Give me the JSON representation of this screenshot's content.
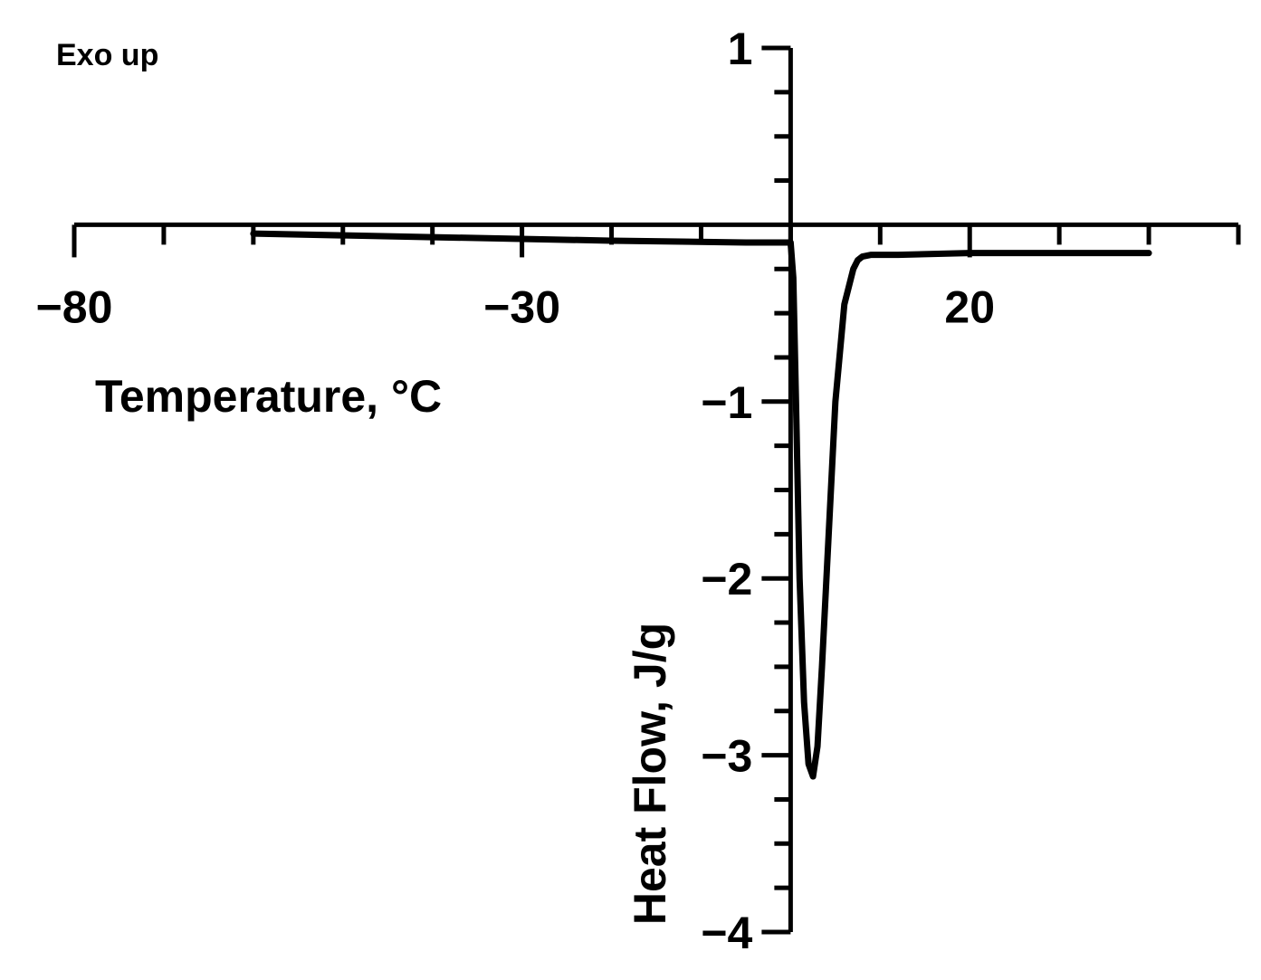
{
  "chart_data": {
    "type": "line",
    "annotation": "Exo up",
    "x_label": "Temperature, °C",
    "y_label": "Heat Flow, J/g",
    "xlim": [
      -80,
      50
    ],
    "ylim": [
      -4,
      1
    ],
    "xticks": [
      {
        "value": -80,
        "label": "−80"
      },
      {
        "value": -30,
        "label": "−30"
      },
      20
    ],
    "xminorticks": [
      -70,
      -60,
      -50,
      -40,
      -20,
      -10,
      0,
      10,
      30,
      40,
      50
    ],
    "yticks": [
      1,
      {
        "value": -1,
        "label": "−1"
      },
      {
        "value": -2,
        "label": "−2"
      },
      {
        "value": -3,
        "label": "−3"
      },
      {
        "value": -4,
        "label": "−4"
      }
    ],
    "yminorticks": [
      0.75,
      0.5,
      0.25,
      -0.25,
      -0.5,
      -0.75,
      -1.25,
      -1.5,
      -1.75,
      -2.25,
      -2.5,
      -2.75,
      -3.25,
      -3.5,
      -3.75
    ],
    "series": [
      {
        "color": "#000000",
        "x": [
          -60,
          -40,
          -20,
          -5,
          0,
          0.3,
          0.6,
          1,
          1.5,
          2,
          2.5,
          3,
          3.5,
          4,
          5,
          6,
          7,
          7.5,
          8,
          9,
          12,
          20,
          30,
          40
        ],
        "values": [
          -0.05,
          -0.07,
          -0.09,
          -0.1,
          -0.1,
          -0.3,
          -1.0,
          -2.0,
          -2.7,
          -3.05,
          -3.12,
          -2.95,
          -2.5,
          -2.0,
          -1.0,
          -0.45,
          -0.25,
          -0.2,
          -0.18,
          -0.17,
          -0.17,
          -0.16,
          -0.16,
          -0.16
        ]
      }
    ]
  }
}
